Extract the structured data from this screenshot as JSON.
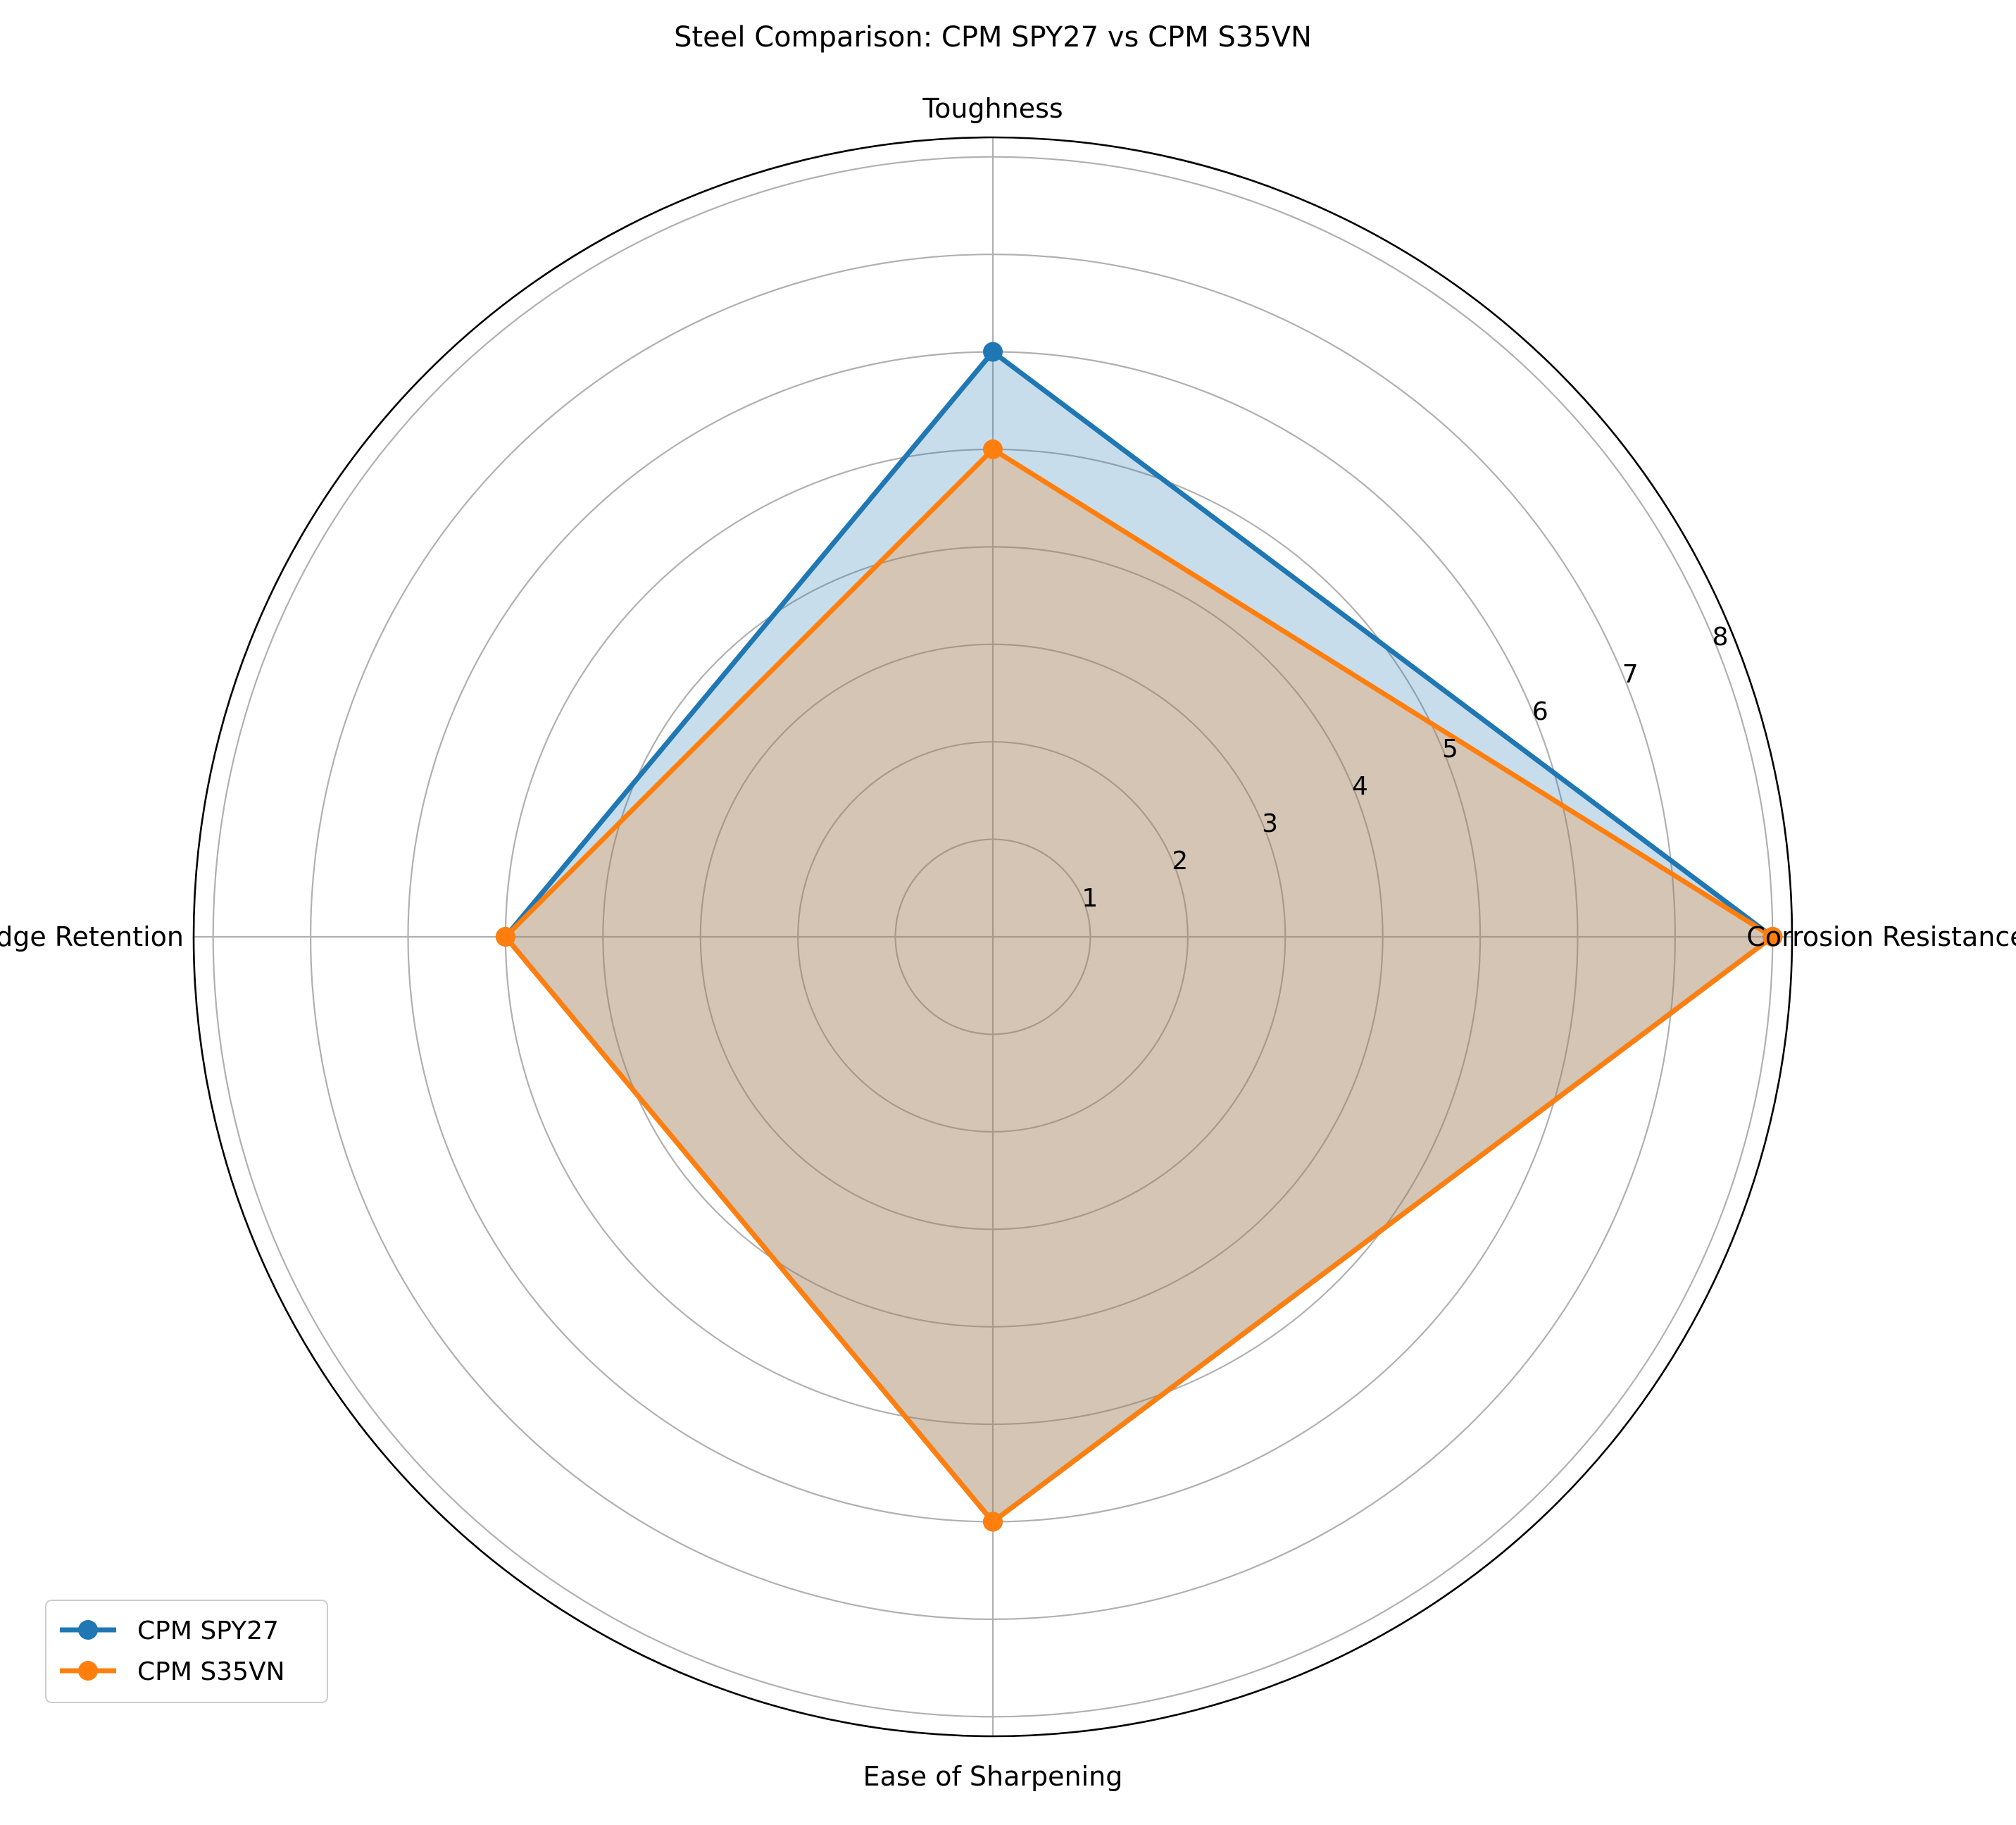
{
  "chart_data": {
    "type": "radar",
    "title": "Steel Comparison: CPM SPY27 vs CPM S35VN",
    "categories": [
      "Corrosion Resistance",
      "Toughness",
      "Edge Retention",
      "Ease of Sharpening"
    ],
    "radial_ticks": [
      1,
      2,
      3,
      4,
      5,
      6,
      7,
      8
    ],
    "rlim": [
      0,
      8.2
    ],
    "grid": true,
    "legend_position": "lower-left",
    "series": [
      {
        "name": "CPM SPY27",
        "values": [
          8,
          6,
          5,
          6
        ],
        "color": "#1f77b4"
      },
      {
        "name": "CPM S35VN",
        "values": [
          8,
          5,
          5,
          6
        ],
        "color": "#ff7f0e"
      }
    ]
  }
}
